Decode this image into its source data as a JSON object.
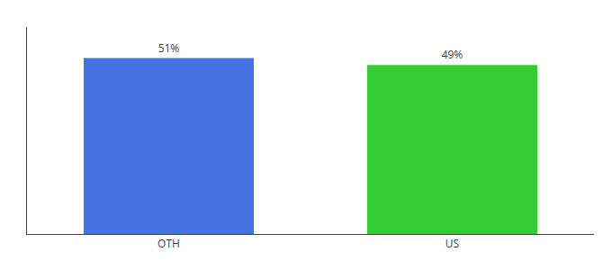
{
  "chart_data": {
    "type": "bar",
    "categories": [
      "OTH",
      "US"
    ],
    "values": [
      51,
      49
    ],
    "value_labels": [
      "51%",
      "49%"
    ],
    "colors": [
      "#4472e0",
      "#33cc33"
    ],
    "ylim": [
      0,
      60
    ],
    "yticks": [],
    "tick_labels": "x",
    "grid": false
  }
}
